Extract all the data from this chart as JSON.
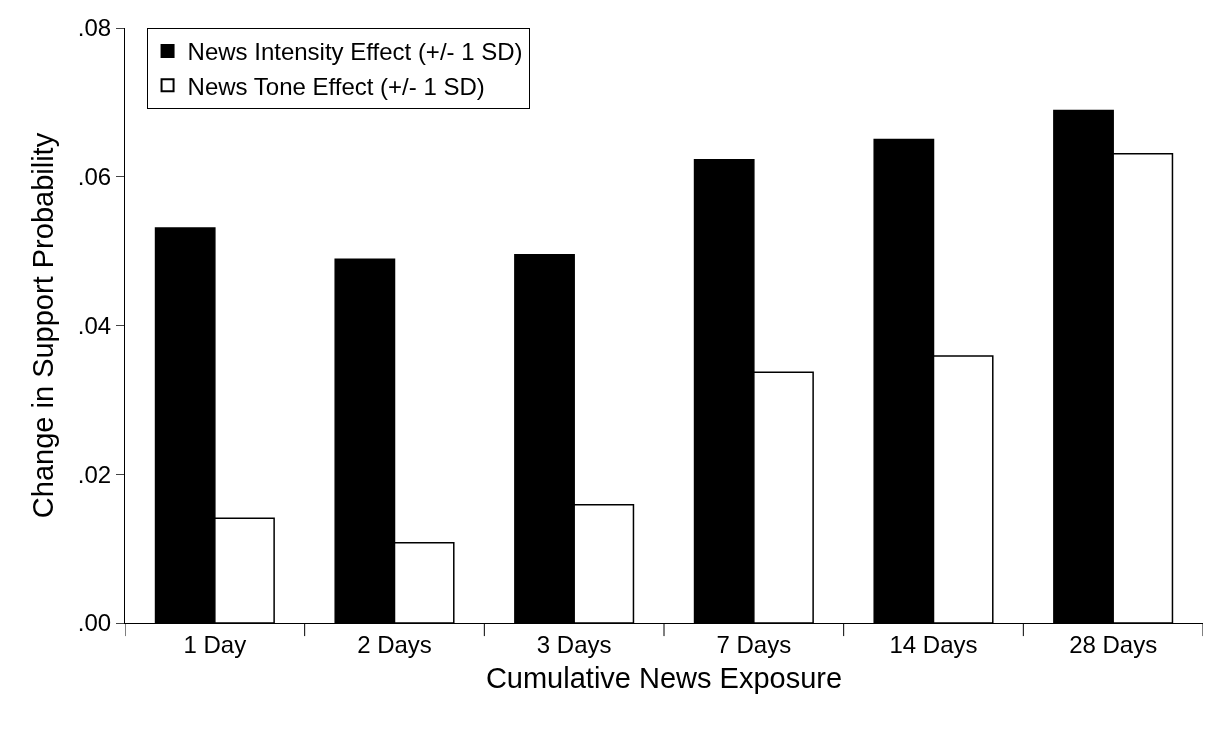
{
  "chart_data": {
    "type": "bar",
    "xlabel": "Cumulative News Exposure",
    "ylabel": "Change in Support Probability",
    "categories": [
      "1 Day",
      "2 Days",
      "3 Days",
      "7 Days",
      "14 Days",
      "28 Days"
    ],
    "series": [
      {
        "name": "News Intensity Effect (+/- 1 SD)",
        "color": "#000000",
        "values": [
          0.0531,
          0.0489,
          0.0495,
          0.0623,
          0.065,
          0.0689
        ]
      },
      {
        "name": "News Tone Effect (+/- 1 SD)",
        "color": "#ffffff",
        "values": [
          0.0141,
          0.0108,
          0.0159,
          0.0337,
          0.0359,
          0.0631
        ]
      }
    ],
    "ylim": [
      0,
      0.08
    ],
    "yticks": [
      {
        "value": 0,
        "label": ".00"
      },
      {
        "value": 0.02,
        "label": ".02"
      },
      {
        "value": 0.04,
        "label": ".04"
      },
      {
        "value": 0.06,
        "label": ".06"
      },
      {
        "value": 0.08,
        "label": ".08"
      }
    ],
    "legend": "top left"
  }
}
